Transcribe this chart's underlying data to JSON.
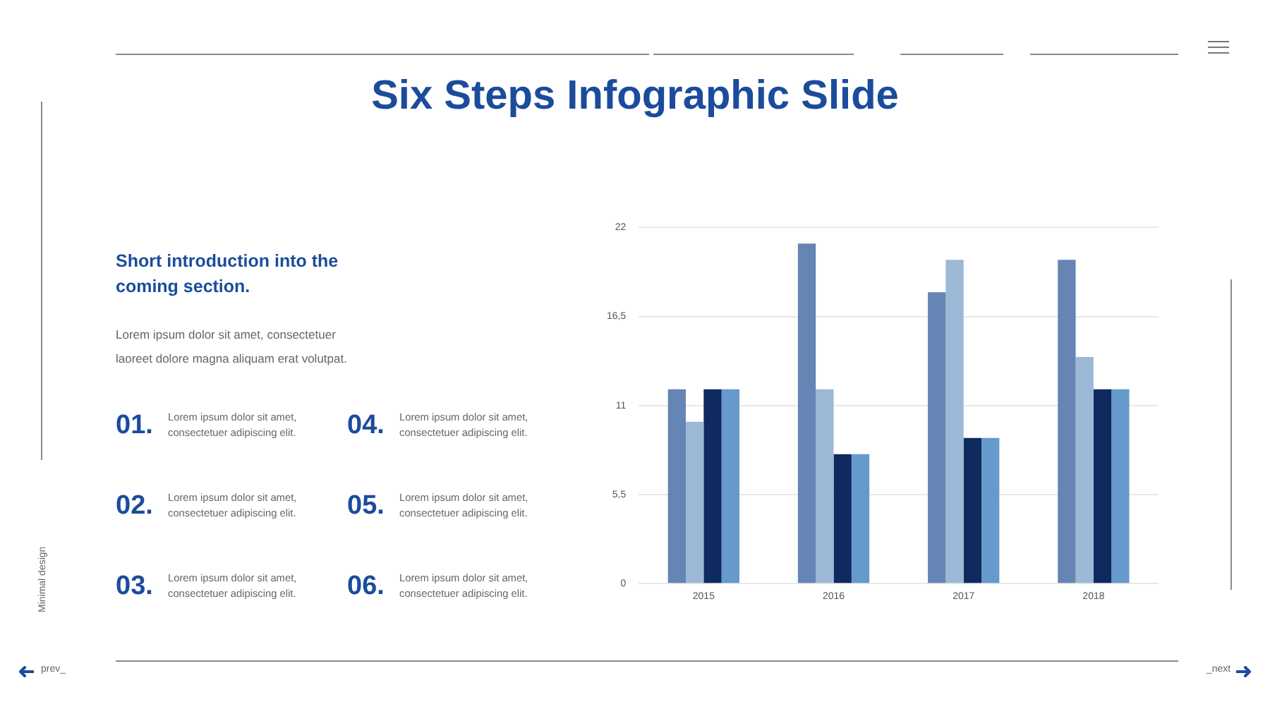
{
  "chart_data": {
    "type": "bar",
    "title": "Six Steps Infographic Slide",
    "categories": [
      "2015",
      "2016",
      "2017",
      "2018"
    ],
    "series": [
      {
        "color": "#6585b4",
        "values": [
          12,
          21,
          18,
          20
        ]
      },
      {
        "color": "#9cb8d7",
        "values": [
          10,
          12,
          20,
          14
        ]
      },
      {
        "color": "#0e2a5e",
        "values": [
          12,
          8,
          9,
          12
        ]
      },
      {
        "color": "#6699cc",
        "values": [
          12,
          8,
          9,
          12
        ]
      }
    ],
    "ylim": [
      0,
      22
    ],
    "yticks": [
      0,
      {
        "value": 5.5,
        "label": "5,5"
      },
      11,
      {
        "value": 16.5,
        "label": "16,5"
      },
      22
    ],
    "grid": "y",
    "annotations": [
      "Short introduction into the coming section.",
      "Lorem ipsum dolor sit amet, consectetuer laoreet dolore magna aliquam erat volutpat.",
      "01.",
      "Lorem ipsum dolor sit amet, consectetuer adipiscing elit.",
      "02.",
      "Lorem ipsum dolor sit amet, consectetuer adipiscing elit.",
      "03.",
      "Lorem ipsum dolor sit amet, consectetuer adipiscing elit.",
      "04.",
      "Lorem ipsum dolor sit amet, consectetuer adipiscing elit.",
      "05.",
      "Lorem ipsum dolor sit amet, consectetuer adipiscing elit.",
      "06.",
      "Lorem ipsum dolor sit amet, consectetuer adipiscing elit.",
      "Minimal design",
      "prev_",
      "_next"
    ]
  }
}
